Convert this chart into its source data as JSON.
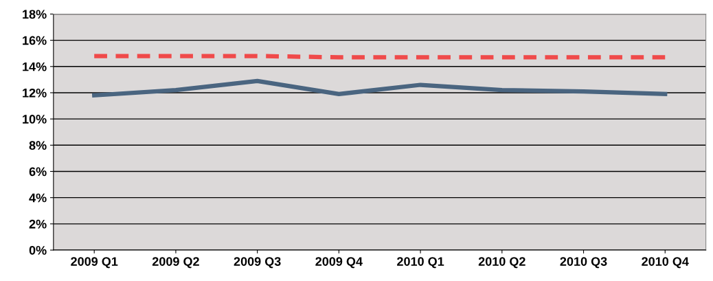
{
  "chart_data": {
    "type": "line",
    "categories": [
      "2009 Q1",
      "2009 Q2",
      "2009 Q3",
      "2009 Q4",
      "2010 Q1",
      "2010 Q2",
      "2010 Q3",
      "2010 Q4"
    ],
    "series": [
      {
        "color": "#4a6580",
        "values": [
          11.8,
          12.2,
          12.9,
          11.9,
          12.6,
          12.2,
          12.1,
          11.9
        ],
        "line_style": "solid"
      },
      {
        "color": "#f04a4a",
        "values": [
          14.8,
          14.8,
          14.8,
          14.7,
          14.7,
          14.7,
          14.7,
          14.7
        ],
        "line_style": "dashed"
      }
    ],
    "ylim": [
      0,
      18
    ],
    "yticks": [
      {
        "value": 0,
        "label": "0%"
      },
      {
        "value": 2,
        "label": "2%"
      },
      {
        "value": 4,
        "label": "4%"
      },
      {
        "value": 6,
        "label": "6%"
      },
      {
        "value": 8,
        "label": "8%"
      },
      {
        "value": 10,
        "label": "10%"
      },
      {
        "value": 12,
        "label": "12%"
      },
      {
        "value": 14,
        "label": "14%"
      },
      {
        "value": 16,
        "label": "16%"
      },
      {
        "value": 18,
        "label": "18%"
      }
    ],
    "grid": "y",
    "marker": "none"
  }
}
